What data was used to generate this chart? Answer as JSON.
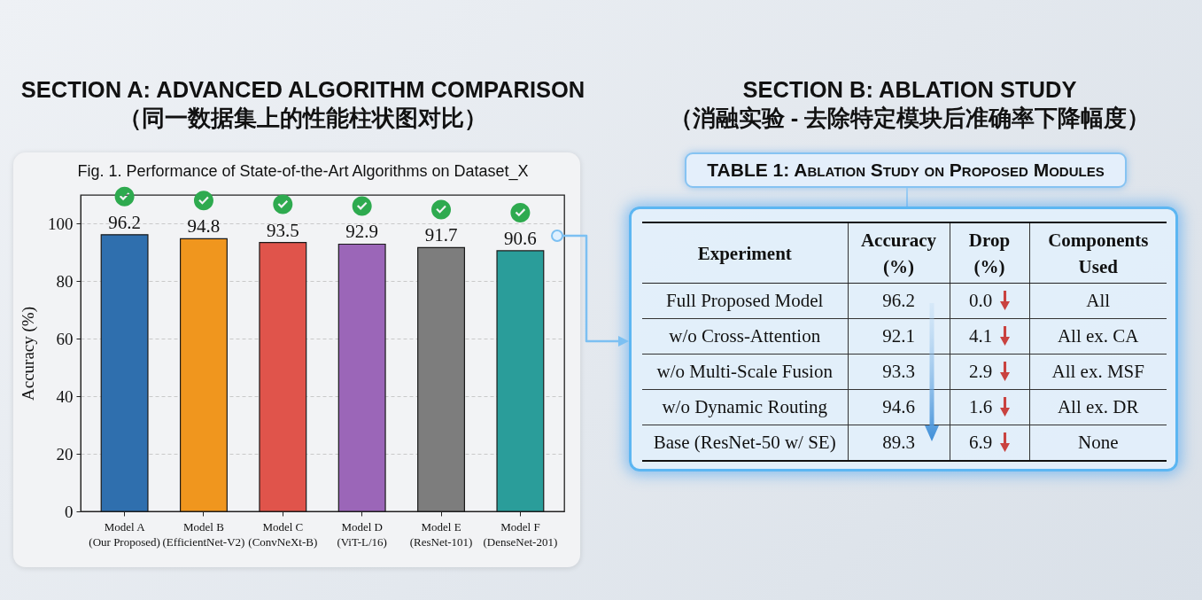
{
  "chart_data": [
    {
      "type": "bar",
      "title": "Fig. 1. Performance of State-of-the-Art Algorithms on Dataset_X",
      "annotations": [
        "SECTION A: ADVANCED ALGORITHM COMPARISON",
        "（同一数据集上的性能柱状图对比）"
      ],
      "categories": [
        "Model A\n(Our Proposed)",
        "Model B\n(EfficientNet-V2)",
        "Model C\n(ConvNeXt-B)",
        "Model D\n(ViT-L/16)",
        "Model E\n(ResNet-101)",
        "Model F\n(DenseNet-201)"
      ],
      "values": [
        96.2,
        94.8,
        93.5,
        92.9,
        91.7,
        90.6
      ],
      "colors": [
        "#2f6fae",
        "#f0961e",
        "#e0544b",
        "#9b66b8",
        "#7d7d7d",
        "#2a9d9a"
      ],
      "ylabel": "Accuracy (%)",
      "ylim": [
        0,
        110
      ],
      "yticks": [
        0,
        20,
        40,
        60,
        80,
        100
      ],
      "grid": "y",
      "data_labels": true
    },
    {
      "type": "other",
      "title": "TABLE 1: Ablation Study on Proposed Modules",
      "annotations": [
        "SECTION B: ABLATION STUDY",
        "（消融实验 - 去除特定模块后准确率下降幅度）"
      ],
      "categories": [
        "Experiment",
        "Accuracy\n(%)",
        "Drop\n(%)",
        "Components\nUsed"
      ],
      "cell_labels": [
        [
          "Full Proposed Model",
          "96.2",
          "0.0",
          "All"
        ],
        [
          "w/o Cross-Attention",
          "92.1",
          "4.1",
          "All ex. CA"
        ],
        [
          "w/o Multi-Scale Fusion",
          "93.3",
          "2.9",
          "All ex. MSF"
        ],
        [
          "w/o Dynamic Routing",
          "94.6",
          "1.6",
          "All ex. DR"
        ],
        [
          "Base (ResNet-50 w/ SE)",
          "89.3",
          "6.9",
          "None"
        ]
      ]
    }
  ]
}
